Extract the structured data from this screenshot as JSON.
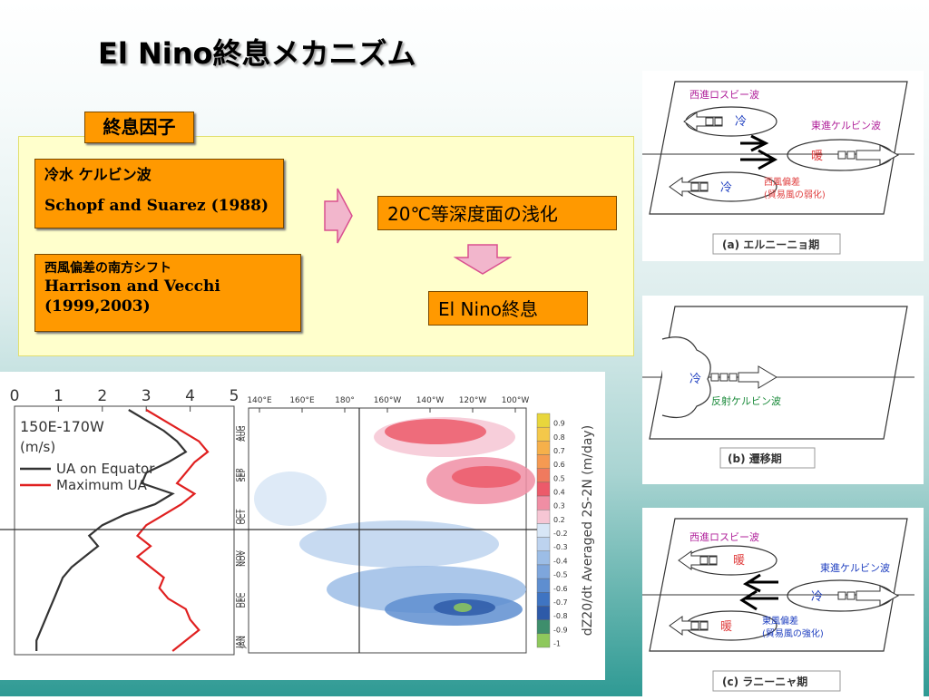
{
  "slide": {
    "title": "El Nino終息メカニズム",
    "factor_tag": "終息因子",
    "cause1": {
      "line1": "冷水 ケルビン波",
      "line2": "Schopf and Suarez (1988)"
    },
    "cause2": {
      "line1": "西風偏差の南方シフト",
      "line2": "Harrison and Vecchi",
      "line3": "(1999,2003)"
    },
    "result1": "20℃等深度面の浅化",
    "result2": "El Nino終息"
  },
  "colors": {
    "orange": "#ff9900",
    "panel_yellow": "#ffffcc",
    "arrow_pink": "#f2b6cc",
    "arrow_outline": "#d9508f",
    "label_red": "#e04040",
    "label_blue": "#2040c0",
    "label_magenta": "#b0209a",
    "label_green": "#1a8a3a"
  },
  "chart_data": [
    {
      "type": "line",
      "x_ticks": [
        "0",
        "1",
        "2",
        "3",
        "4",
        "5"
      ],
      "xlim": [
        0,
        5
      ],
      "annotation": "150E-170W",
      "unit": "(m/s)",
      "y_ticks": [
        "AUG",
        "SEP",
        "OCT",
        "NOV",
        "DEC",
        "JAN"
      ],
      "series": [
        {
          "name": "UA on Equator",
          "color": "#333333",
          "values": [
            2.6,
            3.0,
            3.4,
            3.7,
            3.9,
            3.5,
            3.0,
            2.9,
            3.6,
            3.2,
            2.5,
            2.0,
            1.7,
            1.9,
            1.6,
            1.3,
            1.1,
            1.0,
            0.9,
            0.8,
            0.7,
            0.6,
            0.5,
            0.5
          ]
        },
        {
          "name": "Maximum UA",
          "color": "#e02020",
          "values": [
            3.0,
            3.4,
            3.8,
            4.2,
            4.4,
            4.1,
            3.9,
            3.7,
            4.1,
            3.8,
            3.4,
            3.0,
            2.8,
            3.1,
            2.8,
            3.1,
            3.4,
            3.3,
            3.5,
            3.9,
            4.0,
            4.2,
            3.9,
            3.6
          ]
        }
      ]
    },
    {
      "type": "heatmap",
      "x_ticks": [
        "140°E",
        "160°E",
        "180°",
        "160°W",
        "140°W",
        "120°W",
        "100°W"
      ],
      "y_ticks": [
        "AUG",
        "SEP",
        "OCT",
        "NOV",
        "DEC",
        "JAN"
      ],
      "colorbar_label": "dZ20/dt Averaged 2S-2N (m/day)",
      "colorbar_ticks": [
        "0.9",
        "0.8",
        "0.7",
        "0.6",
        "0.5",
        "0.4",
        "0.3",
        "0.2",
        "-0.2",
        "-0.3",
        "-0.4",
        "-0.5",
        "-0.6",
        "-0.7",
        "-0.8",
        "-0.9",
        "-1"
      ],
      "colorbar_colors": [
        "#e8d63c",
        "#f4c84a",
        "#f6b04a",
        "#f59a52",
        "#f07a5e",
        "#ec5a6a",
        "#f08ea4",
        "#f6c6d4",
        "#d8e6f6",
        "#bdd3ef",
        "#9cbde6",
        "#7ea6dc",
        "#5e8ed0",
        "#3f74c2",
        "#2e5aa8",
        "#3e8e6c",
        "#8ec85c"
      ]
    }
  ],
  "diagrams": {
    "a": {
      "west_rossby": "西進ロスビー波",
      "east_kelvin": "東進ケルビン波",
      "cold": "冷",
      "warm": "暖",
      "west_anomaly": "西風偏差",
      "trade_weak": "(貿易風の弱化)",
      "caption": "(a) エルニーニョ期"
    },
    "b": {
      "cold": "冷",
      "reflected_kelvin": "反射ケルビン波",
      "caption": "(b) 遷移期"
    },
    "c": {
      "west_rossby": "西進ロスビー波",
      "east_kelvin": "東進ケルビン波",
      "cold": "冷",
      "warm": "暖",
      "east_anomaly": "東風偏差",
      "trade_strong": "(貿易風の強化)",
      "caption": "(c) ラニーニャ期"
    }
  }
}
